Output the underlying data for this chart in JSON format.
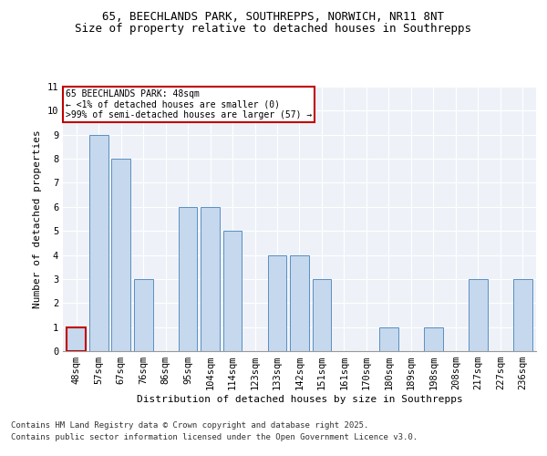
{
  "title1": "65, BEECHLANDS PARK, SOUTHREPPS, NORWICH, NR11 8NT",
  "title2": "Size of property relative to detached houses in Southrepps",
  "xlabel": "Distribution of detached houses by size in Southrepps",
  "ylabel": "Number of detached properties",
  "categories": [
    "48sqm",
    "57sqm",
    "67sqm",
    "76sqm",
    "86sqm",
    "95sqm",
    "104sqm",
    "114sqm",
    "123sqm",
    "133sqm",
    "142sqm",
    "151sqm",
    "161sqm",
    "170sqm",
    "180sqm",
    "189sqm",
    "198sqm",
    "208sqm",
    "217sqm",
    "227sqm",
    "236sqm"
  ],
  "values": [
    1,
    9,
    8,
    3,
    0,
    6,
    6,
    5,
    0,
    4,
    4,
    3,
    0,
    0,
    1,
    0,
    1,
    0,
    3,
    0,
    3
  ],
  "highlight_index": 0,
  "bar_color": "#c5d8ed",
  "bar_edge_color": "#5a8fc0",
  "highlight_bar_edge_color": "#c00000",
  "background_color": "#eef2f8",
  "grid_color": "#ffffff",
  "annotation_box_text": "65 BEECHLANDS PARK: 48sqm\n← <1% of detached houses are smaller (0)\n>99% of semi-detached houses are larger (57) →",
  "annotation_box_edge_color": "#c00000",
  "ylim": [
    0,
    11
  ],
  "yticks": [
    0,
    1,
    2,
    3,
    4,
    5,
    6,
    7,
    8,
    9,
    10,
    11
  ],
  "footer1": "Contains HM Land Registry data © Crown copyright and database right 2025.",
  "footer2": "Contains public sector information licensed under the Open Government Licence v3.0.",
  "title1_fontsize": 9,
  "title2_fontsize": 9,
  "axis_label_fontsize": 8,
  "tick_fontsize": 7.5,
  "footer_fontsize": 6.5
}
